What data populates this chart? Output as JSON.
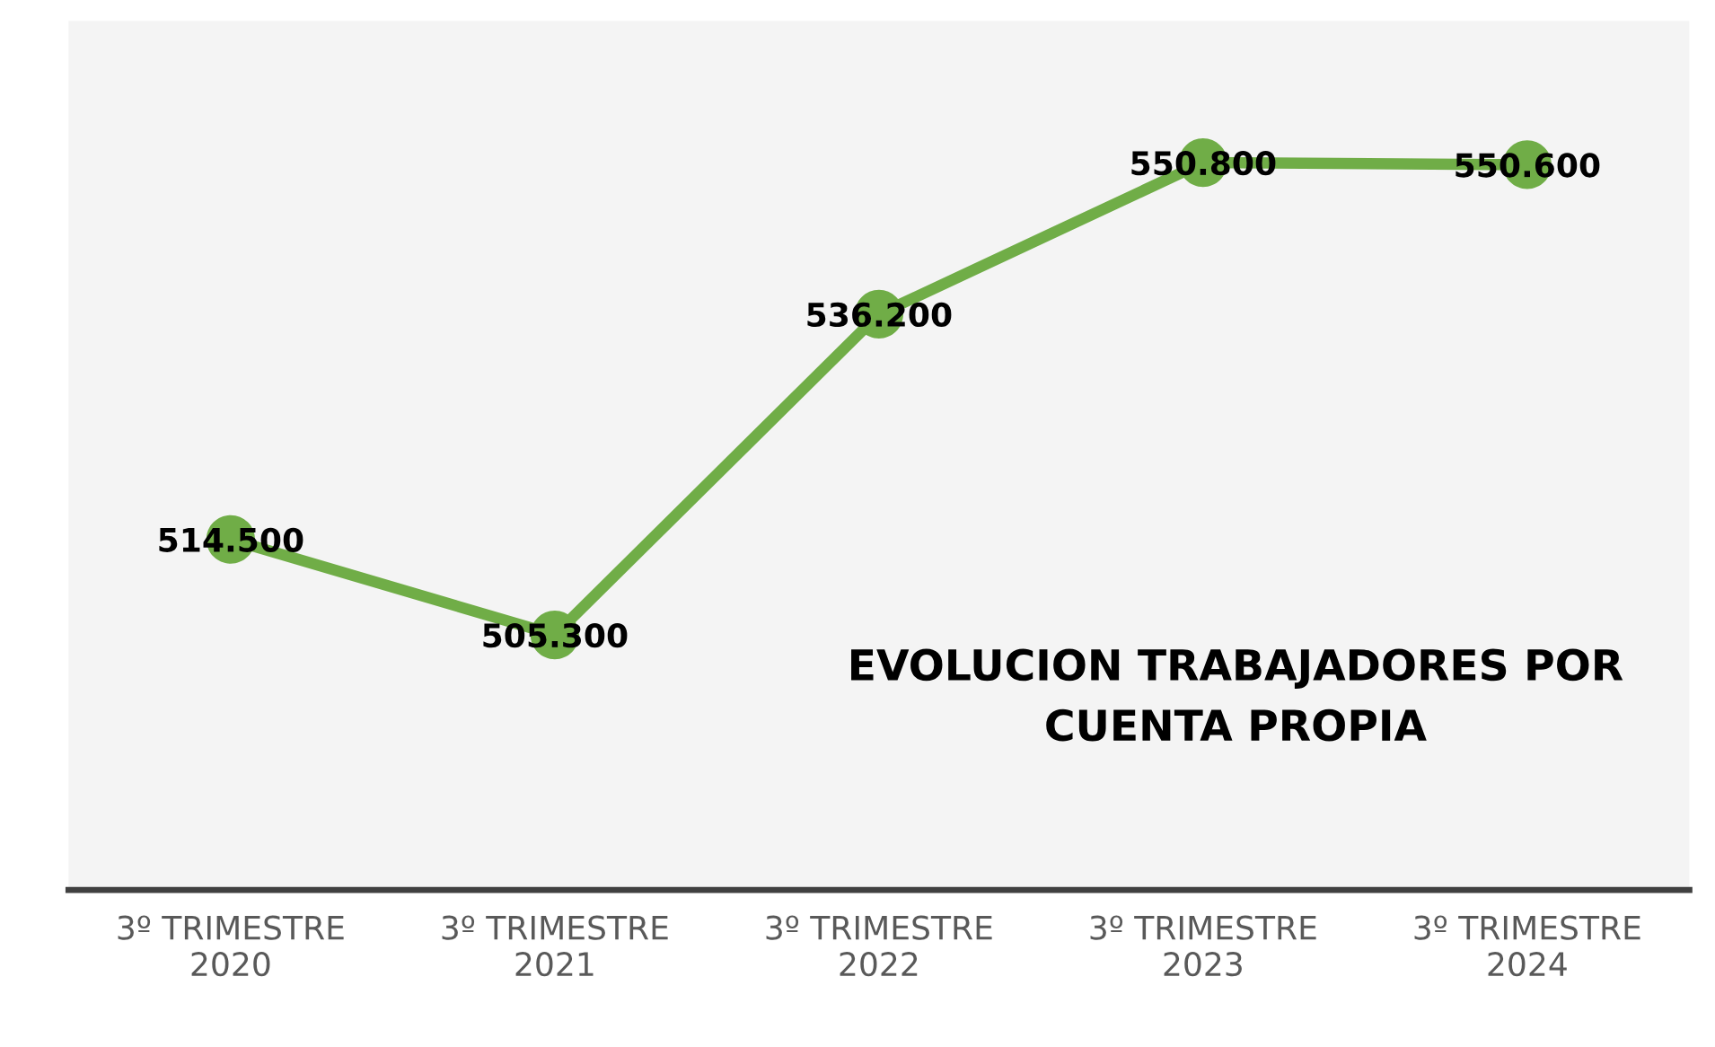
{
  "chart_data": {
    "type": "line",
    "title": "EVOLUCION TRABAJADORES POR\nCUENTA PROPIA",
    "categories": [
      "3º TRIMESTRE\n2020",
      "3º TRIMESTRE\n2021",
      "3º TRIMESTRE\n2022",
      "3º TRIMESTRE\n2023",
      "3º TRIMESTRE\n2024"
    ],
    "series": [
      {
        "color": "#70ad47",
        "values": [
          514500,
          505300,
          536200,
          550800,
          550600
        ],
        "value_labels": [
          "514.500",
          "505.300",
          "536.200",
          "550.800",
          "550.600"
        ]
      }
    ],
    "tick_labels": "x",
    "marker": "circle",
    "line_style": "solid",
    "grid": false
  }
}
